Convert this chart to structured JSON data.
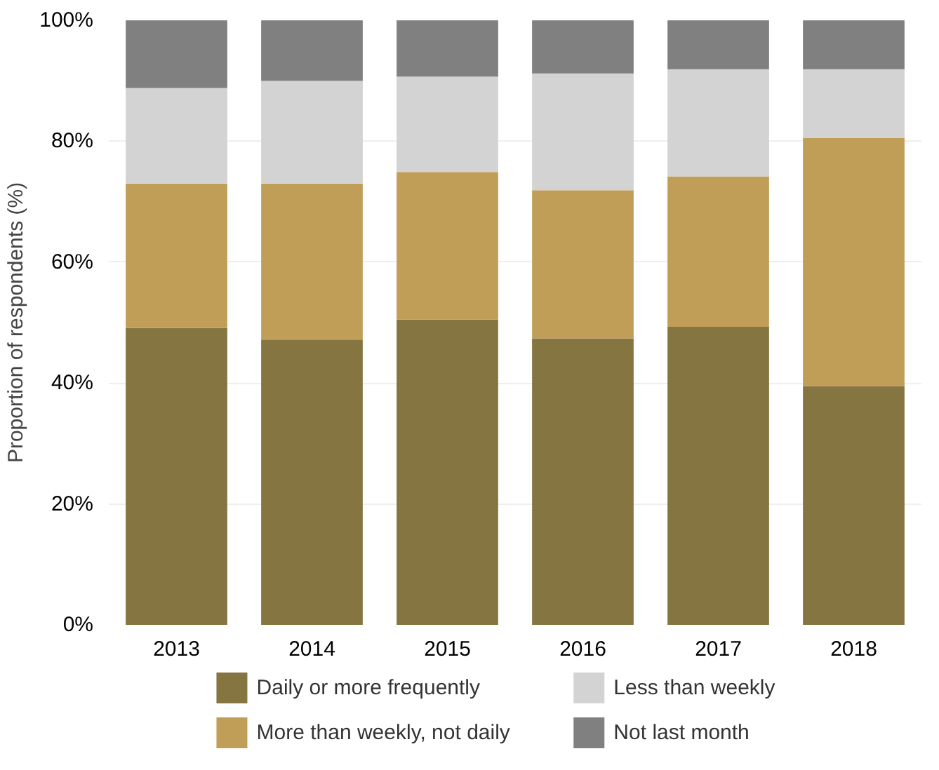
{
  "chart_data": {
    "type": "bar",
    "stacked": true,
    "ylabel": "Proportion of respondents (%)",
    "categories": [
      "2013",
      "2014",
      "2015",
      "2016",
      "2017",
      "2018"
    ],
    "series": [
      {
        "name": "Daily or more frequently",
        "color": "#857540",
        "values": [
          49.1,
          47.2,
          50.5,
          47.4,
          49.3,
          39.5
        ]
      },
      {
        "name": "More than weekly, not daily",
        "color": "#c19e58",
        "values": [
          23.9,
          25.8,
          24.4,
          24.5,
          24.9,
          41.0
        ]
      },
      {
        "name": "Less than weekly",
        "color": "#d3d3d3",
        "values": [
          15.8,
          17.0,
          15.8,
          19.3,
          17.7,
          11.4
        ]
      },
      {
        "name": "Not last month",
        "color": "#808080",
        "values": [
          11.2,
          10.0,
          9.3,
          8.8,
          8.1,
          8.1
        ]
      }
    ],
    "ylim": [
      0,
      100
    ],
    "yticks": [
      {
        "value": 0,
        "label": "0%"
      },
      {
        "value": 20,
        "label": "20%"
      },
      {
        "value": 40,
        "label": "40%"
      },
      {
        "value": 60,
        "label": "60%"
      },
      {
        "value": 80,
        "label": "80%"
      },
      {
        "value": 100,
        "label": "100%"
      }
    ],
    "grid": "y",
    "legend": "bottom"
  }
}
